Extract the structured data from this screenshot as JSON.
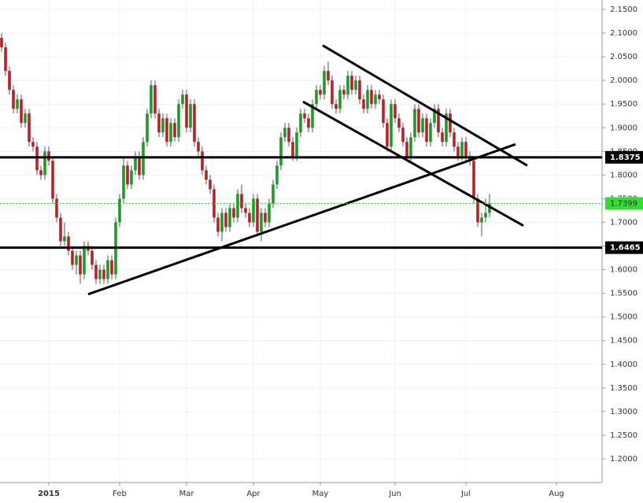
{
  "chart_data": {
    "type": "candlestick",
    "categories": [
      null,
      null,
      null,
      null,
      null,
      null,
      null,
      null,
      null,
      null,
      null,
      null,
      "2015",
      null,
      null,
      null,
      null,
      null,
      null,
      null,
      null,
      null,
      null,
      null,
      null,
      null,
      null,
      null,
      null,
      null,
      "Feb",
      null,
      null,
      null,
      null,
      null,
      null,
      null,
      null,
      null,
      null,
      null,
      null,
      null,
      null,
      null,
      null,
      "Mar",
      null,
      null,
      null,
      null,
      null,
      null,
      null,
      null,
      null,
      null,
      null,
      null,
      null,
      null,
      null,
      null,
      "Apr",
      null,
      null,
      null,
      null,
      null,
      null,
      null,
      null,
      null,
      null,
      null,
      null,
      null,
      null,
      null,
      null,
      "May",
      null,
      null,
      null,
      null,
      null,
      null,
      null,
      null,
      null,
      null,
      null,
      null,
      null,
      null,
      null,
      null,
      null,
      null,
      "Jun",
      null,
      null,
      null,
      null,
      null,
      null,
      null,
      null,
      null,
      null,
      null,
      null,
      null,
      null,
      null,
      null,
      null,
      "Jul",
      null,
      null,
      null,
      null,
      null,
      null,
      null,
      null,
      null,
      null,
      null,
      null,
      null,
      null,
      null,
      null,
      null,
      null,
      null,
      null,
      null,
      null,
      "Aug",
      null,
      null,
      null,
      null,
      null,
      null,
      null,
      null,
      null,
      null,
      null
    ],
    "open": [
      2.09,
      2.07,
      2.02,
      1.98,
      1.94,
      1.96,
      1.91,
      1.93,
      1.87,
      1.86,
      1.81,
      1.8,
      1.85,
      1.83,
      1.75,
      1.71,
      1.66,
      1.67,
      1.64,
      1.61,
      1.63,
      1.59,
      1.65,
      1.64,
      1.61,
      1.58,
      1.6,
      1.58,
      1.62,
      1.59,
      1.7,
      1.75,
      1.82,
      1.78,
      1.81,
      1.84,
      1.8,
      1.87,
      1.93,
      1.99,
      1.93,
      1.89,
      1.92,
      1.87,
      1.91,
      1.88,
      1.95,
      1.97,
      1.9,
      1.95,
      1.87,
      1.85,
      1.81,
      1.79,
      1.77,
      1.71,
      1.68,
      1.72,
      1.69,
      1.73,
      1.71,
      1.76,
      1.73,
      1.72,
      1.7,
      1.75,
      1.68,
      1.72,
      1.7,
      1.74,
      1.78,
      1.82,
      1.88,
      1.9,
      1.87,
      1.84,
      1.89,
      1.93,
      1.92,
      1.9,
      1.95,
      1.98,
      1.97,
      2.02,
      2.0,
      1.95,
      1.94,
      1.98,
      1.97,
      2.01,
      1.98,
      2.0,
      1.96,
      1.94,
      1.98,
      1.95,
      1.97,
      1.96,
      1.91,
      1.86,
      1.95,
      1.92,
      1.9,
      1.87,
      1.84,
      1.88,
      1.94,
      1.89,
      1.92,
      1.87,
      1.91,
      1.94,
      1.89,
      1.87,
      1.93,
      1.89,
      1.86,
      1.84,
      1.87,
      1.84,
      1.83,
      1.75,
      1.7,
      1.71,
      1.72,
      null,
      null,
      null,
      null,
      null,
      null,
      null,
      null,
      null,
      null,
      null,
      null,
      null,
      null,
      null,
      null,
      null,
      null,
      null,
      null,
      null,
      null,
      null,
      null,
      null,
      null,
      null,
      null
    ],
    "high": [
      2.1,
      2.08,
      2.03,
      1.99,
      1.97,
      1.97,
      1.94,
      1.94,
      1.88,
      1.87,
      1.82,
      1.86,
      1.86,
      1.84,
      1.76,
      1.72,
      1.7,
      1.68,
      1.65,
      1.64,
      1.64,
      1.66,
      1.66,
      1.65,
      1.62,
      1.61,
      1.61,
      1.63,
      1.63,
      1.71,
      1.76,
      1.84,
      1.83,
      1.82,
      1.85,
      1.85,
      1.88,
      1.94,
      2.0,
      2.0,
      1.94,
      1.93,
      1.93,
      1.92,
      1.92,
      1.96,
      1.98,
      1.98,
      1.96,
      1.96,
      1.88,
      1.86,
      1.82,
      1.8,
      1.78,
      1.72,
      1.73,
      1.73,
      1.74,
      1.74,
      1.77,
      1.78,
      1.74,
      1.73,
      1.76,
      1.76,
      1.73,
      1.73,
      1.75,
      1.79,
      1.83,
      1.89,
      1.91,
      1.91,
      1.88,
      1.9,
      1.94,
      1.94,
      1.93,
      1.96,
      1.99,
      1.99,
      2.03,
      2.04,
      2.01,
      1.96,
      1.99,
      1.99,
      2.02,
      2.02,
      2.01,
      2.01,
      1.97,
      1.99,
      1.99,
      1.98,
      1.98,
      1.97,
      1.92,
      1.96,
      1.96,
      1.93,
      1.91,
      1.88,
      1.89,
      1.95,
      1.95,
      1.93,
      1.93,
      1.92,
      1.95,
      1.95,
      1.9,
      1.94,
      1.94,
      1.9,
      1.87,
      1.88,
      1.88,
      1.85,
      1.84,
      1.76,
      1.72,
      1.75,
      1.76,
      null,
      null,
      null,
      null,
      null,
      null,
      null,
      null,
      null,
      null,
      null,
      null,
      null,
      null,
      null,
      null,
      null,
      null,
      null,
      null,
      null,
      null,
      null,
      null,
      null,
      null,
      null,
      null
    ],
    "low": [
      2.06,
      2.01,
      1.97,
      1.93,
      1.93,
      1.9,
      1.9,
      1.86,
      1.85,
      1.8,
      1.79,
      1.79,
      1.82,
      1.74,
      1.7,
      1.65,
      1.65,
      1.63,
      1.6,
      1.59,
      1.57,
      1.58,
      1.63,
      1.6,
      1.57,
      1.57,
      1.57,
      1.57,
      1.58,
      1.58,
      1.69,
      1.74,
      1.77,
      1.77,
      1.8,
      1.79,
      1.79,
      1.86,
      1.92,
      1.92,
      1.88,
      1.88,
      1.86,
      1.86,
      1.87,
      1.87,
      1.94,
      1.89,
      1.89,
      1.86,
      1.84,
      1.8,
      1.78,
      1.76,
      1.7,
      1.67,
      1.66,
      1.68,
      1.68,
      1.7,
      1.7,
      1.72,
      1.71,
      1.69,
      1.69,
      1.67,
      1.66,
      1.69,
      1.69,
      1.73,
      1.77,
      1.81,
      1.87,
      1.86,
      1.83,
      1.83,
      1.88,
      1.91,
      1.89,
      1.89,
      1.94,
      1.96,
      1.96,
      1.99,
      1.94,
      1.93,
      1.93,
      1.96,
      1.96,
      1.97,
      1.97,
      1.95,
      1.93,
      1.93,
      1.94,
      1.94,
      1.95,
      1.9,
      1.85,
      1.85,
      1.91,
      1.89,
      1.86,
      1.83,
      1.83,
      1.87,
      1.88,
      1.88,
      1.86,
      1.86,
      1.9,
      1.88,
      1.86,
      1.86,
      1.88,
      1.85,
      1.83,
      1.83,
      1.83,
      1.82,
      1.74,
      1.69,
      1.67,
      1.7,
      1.71,
      null,
      null,
      null,
      null,
      null,
      null,
      null,
      null,
      null,
      null,
      null,
      null,
      null,
      null,
      null,
      null,
      null,
      null,
      null,
      null,
      null,
      null,
      null,
      null,
      null,
      null,
      null,
      null
    ],
    "close": [
      2.07,
      2.02,
      1.98,
      1.94,
      1.96,
      1.91,
      1.93,
      1.87,
      1.86,
      1.81,
      1.8,
      1.85,
      1.83,
      1.75,
      1.71,
      1.66,
      1.67,
      1.64,
      1.61,
      1.63,
      1.59,
      1.65,
      1.64,
      1.61,
      1.58,
      1.6,
      1.58,
      1.62,
      1.59,
      1.7,
      1.75,
      1.82,
      1.78,
      1.81,
      1.84,
      1.8,
      1.87,
      1.93,
      1.99,
      1.93,
      1.89,
      1.92,
      1.87,
      1.91,
      1.88,
      1.95,
      1.97,
      1.9,
      1.95,
      1.87,
      1.85,
      1.81,
      1.79,
      1.77,
      1.71,
      1.68,
      1.72,
      1.69,
      1.73,
      1.71,
      1.76,
      1.73,
      1.72,
      1.7,
      1.75,
      1.68,
      1.72,
      1.7,
      1.74,
      1.78,
      1.82,
      1.88,
      1.9,
      1.87,
      1.84,
      1.89,
      1.93,
      1.92,
      1.9,
      1.95,
      1.98,
      1.97,
      2.02,
      2.0,
      1.95,
      1.94,
      1.98,
      1.97,
      2.01,
      1.98,
      2.0,
      1.96,
      1.94,
      1.98,
      1.95,
      1.97,
      1.96,
      1.91,
      1.86,
      1.95,
      1.92,
      1.9,
      1.87,
      1.84,
      1.88,
      1.94,
      1.89,
      1.92,
      1.87,
      1.91,
      1.94,
      1.89,
      1.87,
      1.93,
      1.89,
      1.86,
      1.84,
      1.87,
      1.84,
      1.83,
      1.75,
      1.7,
      1.71,
      1.72,
      1.7399,
      null,
      null,
      null,
      null,
      null,
      null,
      null,
      null,
      null,
      null,
      null,
      null,
      null,
      null,
      null,
      null,
      null,
      null,
      null,
      null,
      null,
      null,
      null,
      null,
      null,
      null,
      null,
      null
    ],
    "up_color": "#1f9a2a",
    "down_color": "#b5232a",
    "ylim": [
      1.15,
      2.17
    ],
    "yticks": [
      {
        "value": 1.2,
        "label": "1.2000"
      },
      {
        "value": 1.25,
        "label": "1.2500"
      },
      {
        "value": 1.3,
        "label": "1.3000"
      },
      {
        "value": 1.35,
        "label": "1.3500"
      },
      {
        "value": 1.4,
        "label": "1.4000"
      },
      {
        "value": 1.45,
        "label": "1.4500"
      },
      {
        "value": 1.5,
        "label": "1.5000"
      },
      {
        "value": 1.55,
        "label": "1.5500"
      },
      {
        "value": 1.6,
        "label": "1.6000"
      },
      {
        "value": 1.65,
        "label": "1.6500"
      },
      {
        "value": 1.7,
        "label": "1.7000"
      },
      {
        "value": 1.75,
        "label": "1.7500"
      },
      {
        "value": 1.8,
        "label": "1.8000"
      },
      {
        "value": 1.85,
        "label": "1.8500"
      },
      {
        "value": 1.9,
        "label": "1.9000"
      },
      {
        "value": 1.95,
        "label": "1.9500"
      },
      {
        "value": 2.0,
        "label": "2.0000"
      },
      {
        "value": 2.05,
        "label": "2.0500"
      },
      {
        "value": 2.1,
        "label": "2.1000"
      },
      {
        "value": 2.15,
        "label": "2.1500"
      }
    ],
    "grid": true,
    "levels": [
      1.8375,
      1.6465
    ],
    "level_color": "#000000",
    "last_price": 1.7399,
    "last_color": "#33dd33",
    "trendlines": [
      {
        "x": [
          22,
          130.6
        ],
        "y": [
          1.548,
          1.865
        ]
      },
      {
        "x": [
          81.6,
          133.6
        ],
        "y": [
          2.074,
          1.82
        ]
      },
      {
        "x": [
          76.6,
          132.6
        ],
        "y": [
          1.955,
          1.693
        ]
      }
    ]
  }
}
